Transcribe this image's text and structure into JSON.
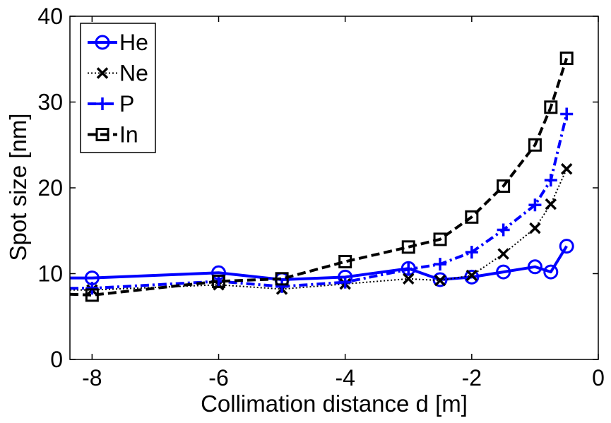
{
  "chart_data": {
    "type": "line",
    "title": "",
    "xlabel": "Collimation distance d [m]",
    "ylabel": "Spot size [nm]",
    "xlim": [
      -8.35,
      0
    ],
    "ylim": [
      0,
      40
    ],
    "x_ticks": [
      -8,
      -6,
      -4,
      -2,
      0
    ],
    "y_ticks": [
      0,
      10,
      20,
      30,
      40
    ],
    "x_tick_labels": [
      "-8",
      "-6",
      "-4",
      "-2",
      "0"
    ],
    "y_tick_labels": [
      "0",
      "10",
      "20",
      "30",
      "40"
    ],
    "grid": false,
    "legend_position": "top-left",
    "series": [
      {
        "name": "He",
        "color": "#0000ff",
        "line_style": "solid",
        "marker": "circle",
        "x": [
          -8.35,
          -8,
          -6,
          -5,
          -4,
          -3,
          -2.5,
          -2,
          -1.5,
          -1,
          -0.75,
          -0.5
        ],
        "y": [
          9.5,
          9.5,
          10.1,
          9.3,
          9.6,
          10.6,
          9.3,
          9.6,
          10.2,
          10.8,
          10.2,
          13.2
        ]
      },
      {
        "name": "Ne",
        "color": "#000000",
        "line_style": "dotted",
        "marker": "x",
        "x": [
          -8.35,
          -8,
          -6,
          -5,
          -4,
          -3,
          -2.5,
          -2,
          -1.5,
          -1,
          -0.75,
          -0.5
        ],
        "y": [
          8.1,
          8.1,
          8.7,
          8.2,
          8.8,
          9.4,
          9.2,
          9.8,
          12.3,
          15.3,
          18.1,
          22.2
        ]
      },
      {
        "name": "P",
        "color": "#0000ff",
        "line_style": "dashdot",
        "marker": "plus",
        "x": [
          -8.35,
          -8,
          -6,
          -5,
          -4,
          -3,
          -2.5,
          -2,
          -1.5,
          -1,
          -0.75,
          -0.5
        ],
        "y": [
          8.3,
          8.3,
          9.1,
          8.5,
          9.0,
          10.5,
          11.1,
          12.5,
          15.1,
          18.0,
          20.9,
          28.6
        ]
      },
      {
        "name": "In",
        "color": "#000000",
        "line_style": "dashed",
        "marker": "square",
        "x": [
          -8.35,
          -8,
          -6,
          -5,
          -4,
          -3,
          -2.5,
          -2,
          -1.5,
          -1,
          -0.75,
          -0.5
        ],
        "y": [
          7.6,
          7.5,
          9.1,
          9.4,
          11.4,
          13.1,
          14.0,
          16.6,
          20.2,
          25.0,
          29.4,
          35.1
        ]
      }
    ]
  }
}
